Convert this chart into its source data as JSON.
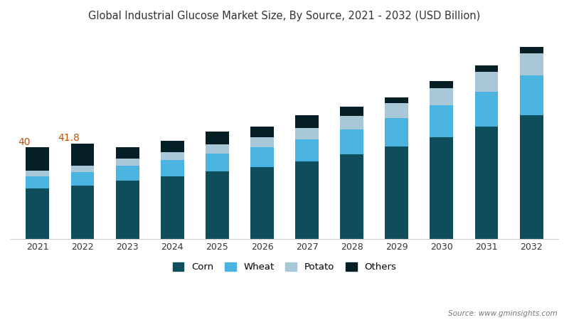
{
  "title": "Global Industrial Glucose Market Size, By Source, 2021 - 2032 (USD Billion)",
  "years": [
    2021,
    2022,
    2023,
    2024,
    2025,
    2026,
    2027,
    2028,
    2029,
    2030,
    2031,
    2032
  ],
  "corn": [
    22.0,
    23.5,
    25.5,
    27.5,
    29.5,
    31.5,
    34.0,
    37.0,
    40.5,
    44.5,
    49.0,
    54.0
  ],
  "wheat": [
    5.5,
    5.8,
    6.5,
    7.0,
    7.8,
    8.5,
    9.5,
    11.0,
    12.5,
    14.0,
    15.5,
    17.5
  ],
  "potato": [
    2.5,
    2.8,
    3.2,
    3.5,
    4.0,
    4.5,
    5.0,
    5.8,
    6.5,
    7.5,
    8.5,
    9.5
  ],
  "others": [
    10.0,
    9.7,
    4.8,
    5.0,
    5.7,
    4.5,
    5.5,
    4.2,
    2.5,
    3.0,
    3.0,
    3.0
  ],
  "annotations": {
    "2021": "40",
    "2022": "41.8"
  },
  "corn_color": "#0d4d5c",
  "wheat_color": "#4ab3e0",
  "potato_color": "#a8c8d8",
  "others_color": "#061e26",
  "bg_color": "#ffffff",
  "legend_labels": [
    "Corn",
    "Wheat",
    "Potato",
    "Others"
  ],
  "source_text": "Source: www.gminsights.com",
  "annotation_color": "#c45000",
  "ylim": [
    0,
    90
  ],
  "bar_width": 0.52
}
